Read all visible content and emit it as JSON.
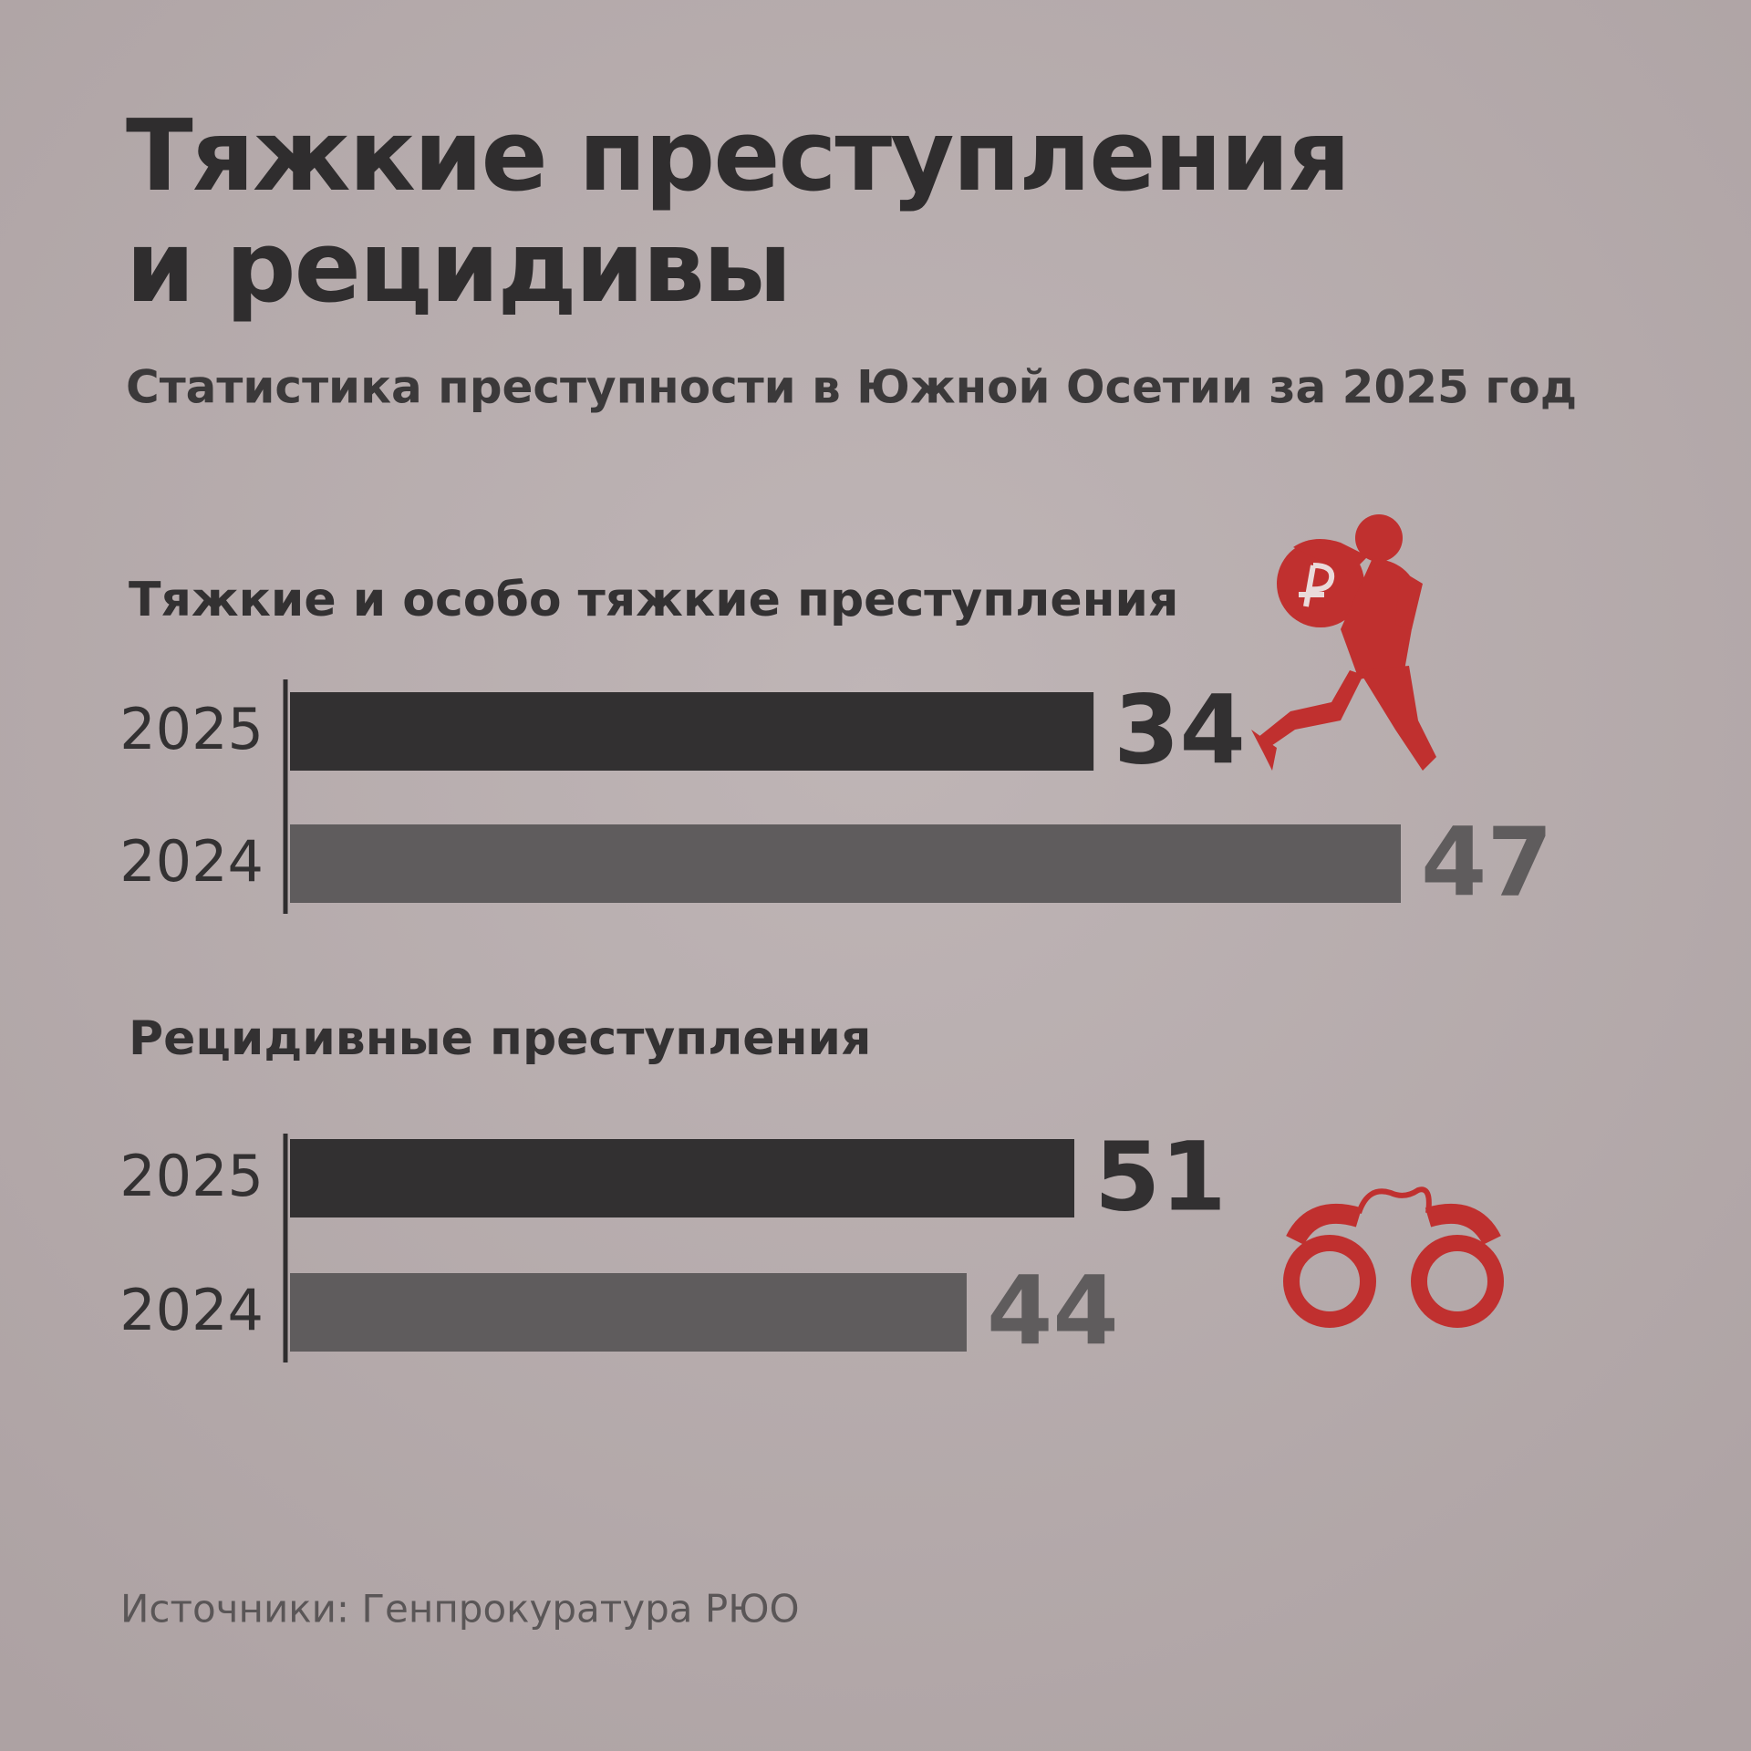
{
  "title": [
    "Тяжкие преступления",
    "и рецидивы"
  ],
  "subtitle": "Статистика преступности в Южной Осетии за 2025 год",
  "source": "Источники: Генпрокуратура РЮО",
  "chart_data": [
    {
      "type": "bar",
      "orientation": "horizontal",
      "title": "Тяжкие и особо тяжкие преступления",
      "categories": [
        "2025",
        "2024"
      ],
      "values": [
        34,
        47
      ],
      "colors": [
        "#323031",
        "#5f5c5d"
      ]
    },
    {
      "type": "bar",
      "orientation": "horizontal",
      "title": "Рецидивные преступления",
      "categories": [
        "2025",
        "2024"
      ],
      "values": [
        51,
        44
      ],
      "colors": [
        "#323031",
        "#5f5c5d"
      ]
    }
  ]
}
